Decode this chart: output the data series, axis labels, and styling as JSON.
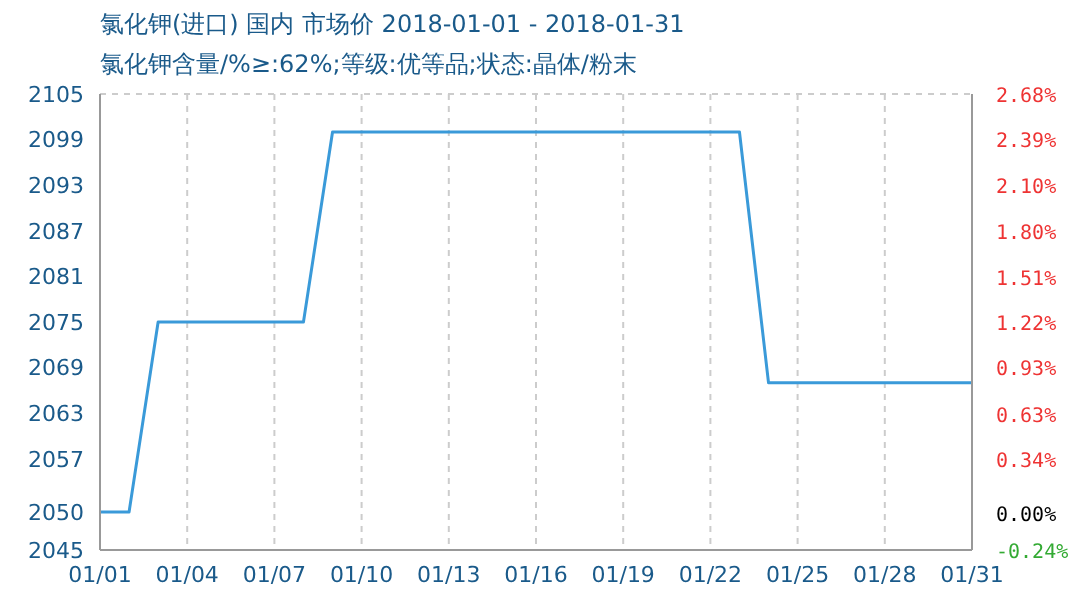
{
  "chart_data": {
    "type": "line",
    "title": "氯化钾(进口) 国内 市场价 2018-01-01 - 2018-01-31",
    "subtitle": "氯化钾含量/%≥:62%;等级:优等品;状态:晶体/粉末",
    "x": [
      "2018-01-01",
      "2018-01-02",
      "2018-01-03",
      "2018-01-04",
      "2018-01-05",
      "2018-01-06",
      "2018-01-07",
      "2018-01-08",
      "2018-01-09",
      "2018-01-10",
      "2018-01-11",
      "2018-01-12",
      "2018-01-13",
      "2018-01-14",
      "2018-01-15",
      "2018-01-16",
      "2018-01-17",
      "2018-01-18",
      "2018-01-19",
      "2018-01-20",
      "2018-01-21",
      "2018-01-22",
      "2018-01-23",
      "2018-01-24",
      "2018-01-25",
      "2018-01-26",
      "2018-01-27",
      "2018-01-28",
      "2018-01-29",
      "2018-01-30",
      "2018-01-31"
    ],
    "series": [
      {
        "color": "#3a9ad9",
        "values": [
          2050,
          2050,
          2075,
          2075,
          2075,
          2075,
          2075,
          2075,
          2100,
          2100,
          2100,
          2100,
          2100,
          2100,
          2100,
          2100,
          2100,
          2100,
          2100,
          2100,
          2100,
          2100,
          2100,
          2067,
          2067,
          2067,
          2067,
          2067,
          2067,
          2067,
          2067
        ]
      }
    ],
    "xlim": [
      "2018-01-01",
      "2018-01-31"
    ],
    "xticks": [
      {
        "value": "2018-01-01",
        "label": "01/01"
      },
      {
        "value": "2018-01-04",
        "label": "01/04"
      },
      {
        "value": "2018-01-07",
        "label": "01/07"
      },
      {
        "value": "2018-01-10",
        "label": "01/10"
      },
      {
        "value": "2018-01-13",
        "label": "01/13"
      },
      {
        "value": "2018-01-16",
        "label": "01/16"
      },
      {
        "value": "2018-01-19",
        "label": "01/19"
      },
      {
        "value": "2018-01-22",
        "label": "01/22"
      },
      {
        "value": "2018-01-25",
        "label": "01/25"
      },
      {
        "value": "2018-01-28",
        "label": "01/28"
      },
      {
        "value": "2018-01-31",
        "label": "01/31"
      }
    ],
    "ylim": [
      2045,
      2105
    ],
    "yticks": [
      2045,
      2050,
      2057,
      2063,
      2069,
      2075,
      2081,
      2087,
      2093,
      2099,
      2105
    ],
    "y2lim": [
      -0.24,
      2.68
    ],
    "y2ticks": [
      {
        "value": -0.24,
        "label": "-0.24%"
      },
      {
        "value": 0,
        "label": "0.00%"
      },
      {
        "value": 0.34,
        "label": "0.34%"
      },
      {
        "value": 0.63,
        "label": "0.63%"
      },
      {
        "value": 0.93,
        "label": "0.93%"
      },
      {
        "value": 1.22,
        "label": "1.22%"
      },
      {
        "value": 1.51,
        "label": "1.51%"
      },
      {
        "value": 1.8,
        "label": "1.80%"
      },
      {
        "value": 2.1,
        "label": "2.10%"
      },
      {
        "value": 2.39,
        "label": "2.39%"
      },
      {
        "value": 2.68,
        "label": "2.68%"
      }
    ],
    "grid": true,
    "legend": false,
    "marker": "none",
    "line_style": "solid"
  }
}
